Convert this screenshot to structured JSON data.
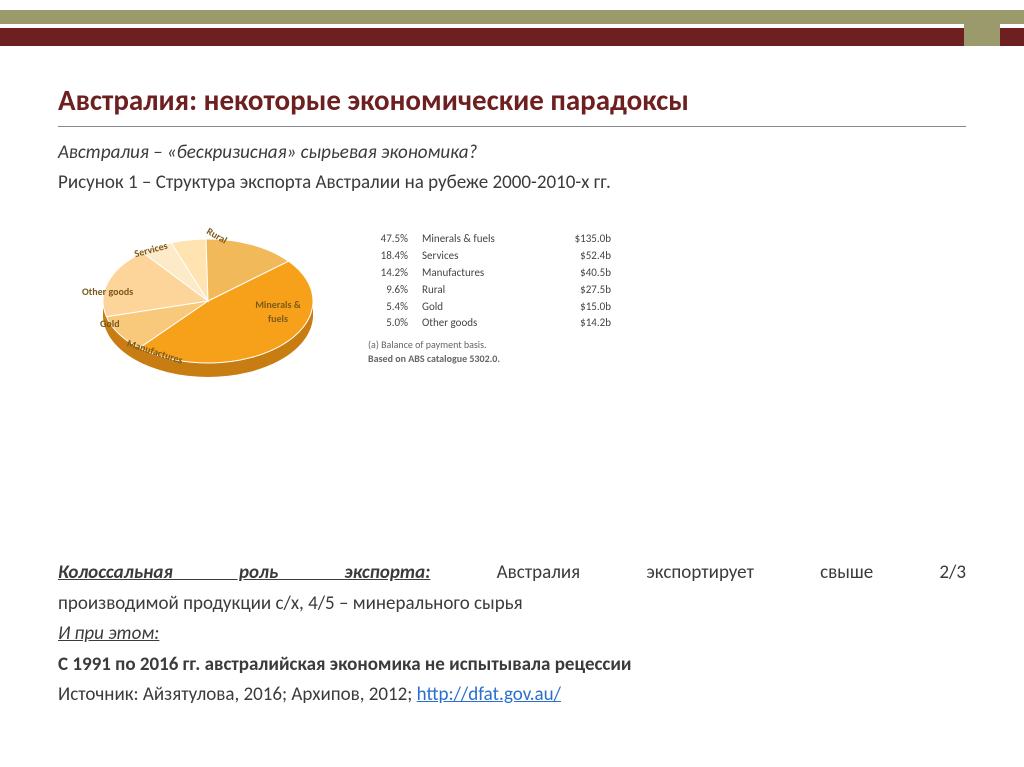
{
  "header": {
    "bar1_color": "#9a9a6c",
    "bar2_color": "#6e1f1f"
  },
  "title": "Австралия: некоторые экономические парадоксы",
  "title_color": "#6e1f1f",
  "intro": "Австралия – «бескризисная» сырьевая экономика?",
  "figure_caption": "Рисунок 1 – Структура экспорта Австралии на рубеже 2000-2010-х гг.",
  "pie": {
    "type": "pie",
    "slices": [
      {
        "label": "Minerals & fuels",
        "pct": 47.5,
        "value": "$135.0b",
        "color": "#f7a11a"
      },
      {
        "label": "Services",
        "pct": 18.4,
        "value": "$52.4b",
        "color": "#fdd49a"
      },
      {
        "label": "Manufactures",
        "pct": 14.2,
        "value": "$40.5b",
        "color": "#f2b95a"
      },
      {
        "label": "Rural",
        "pct": 9.6,
        "value": "$27.5b",
        "color": "#f8c97a"
      },
      {
        "label": "Gold",
        "pct": 5.4,
        "value": "$15.0b",
        "color": "#ffe3b0"
      },
      {
        "label": "Other goods",
        "pct": 5.0,
        "value": "$14.2b",
        "color": "#fdeac8"
      }
    ],
    "label_fontsize": 10,
    "label_color": "#7a5a1a",
    "note_a": "(a) Balance of payment basis.",
    "note_b": "Based on ABS catalogue 5302.0.",
    "labels_on_chart": {
      "minerals": "Minerals & fuels",
      "services": "Services",
      "rural": "Rural",
      "other": "Other goods",
      "gold": "Gold",
      "manufactures": "Manufactures"
    }
  },
  "bottom": {
    "lead_emph": "Колоссальная роль экспорта:",
    "lead_rest_line1": "Австралия экспортирует свыше 2/3",
    "lead_line2": "производимой продукции с/х,  4/5 – минерального сырья",
    "and_note": "И при этом:",
    "bold_line": "С 1991 по 2016 гг. австралийская экономика не испытывала рецессии",
    "source_prefix": "Источник: Айзятулова, 2016; Архипов, 2012;  ",
    "source_link": "http://dfat.gov.au/"
  }
}
